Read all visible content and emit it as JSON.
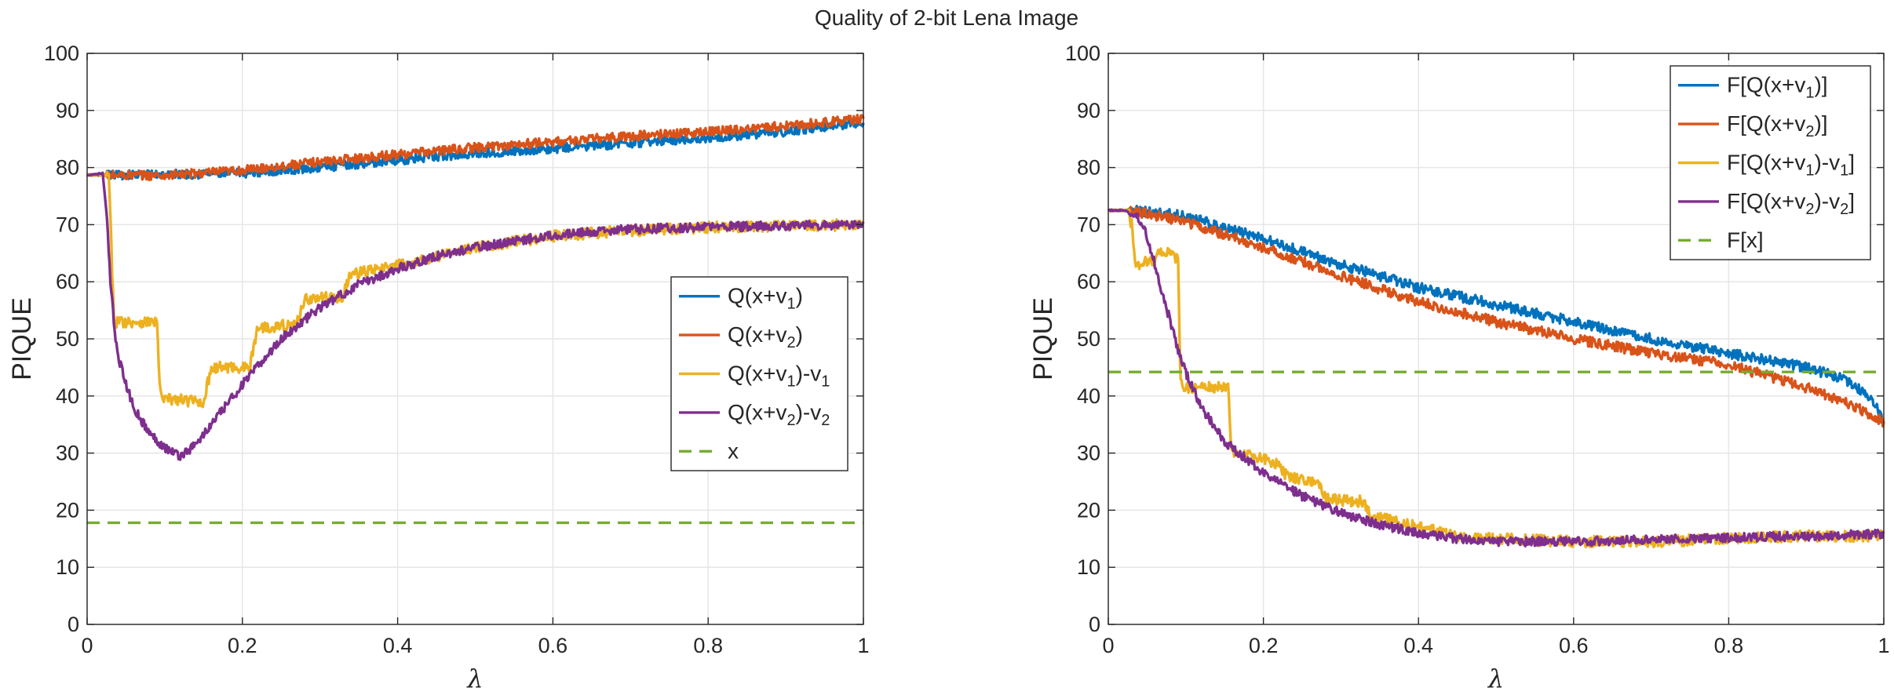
{
  "figure_title": "Quality of 2-bit Lena Image",
  "colors": {
    "blue": "#0072BD",
    "orange": "#D95319",
    "yellow": "#EDB120",
    "purple": "#7E2F8E",
    "green": "#77AC30",
    "grid": "#e6e6e6",
    "axis": "#262626"
  },
  "chart_data": [
    {
      "type": "line",
      "title": "Quality of 2-bit Lena Image",
      "xlabel": "λ",
      "ylabel": "PIQUE",
      "xlim": [
        0,
        1
      ],
      "ylim": [
        0,
        100
      ],
      "xticks": [
        "0",
        "0.2",
        "0.4",
        "0.6",
        "0.8",
        "1"
      ],
      "yticks": [
        "0",
        "10",
        "20",
        "30",
        "40",
        "50",
        "60",
        "70",
        "80",
        "90",
        "100"
      ],
      "grid": true,
      "legend_position": "center-right",
      "series": [
        {
          "name": "Q(x+v1)",
          "legend_parts": [
            [
              "Q(x+v",
              ""
            ],
            [
              "1",
              "sub"
            ],
            [
              ")",
              ""
            ]
          ],
          "color": "#0072BD",
          "style": "solid",
          "x": [
            0,
            0.02,
            0.1,
            0.2,
            0.3,
            0.4,
            0.5,
            0.6,
            0.7,
            0.8,
            0.9,
            1.0
          ],
          "y": [
            78.7,
            78.7,
            78.8,
            79.0,
            80.0,
            81.3,
            82.5,
            83.3,
            84.3,
            85.2,
            86.3,
            88.0
          ],
          "noise": 0.8
        },
        {
          "name": "Q(x+v2)",
          "legend_parts": [
            [
              "Q(x+v",
              ""
            ],
            [
              "2",
              "sub"
            ],
            [
              ")",
              ""
            ]
          ],
          "color": "#D95319",
          "style": "solid",
          "x": [
            0,
            0.02,
            0.1,
            0.2,
            0.3,
            0.4,
            0.5,
            0.6,
            0.7,
            0.8,
            0.9,
            1.0
          ],
          "y": [
            78.7,
            78.7,
            78.6,
            79.5,
            81.0,
            82.3,
            83.5,
            84.5,
            85.5,
            86.3,
            87.3,
            88.5
          ],
          "noise": 0.8
        },
        {
          "name": "Q(x+v1)-v1",
          "legend_parts": [
            [
              "Q(x+v",
              ""
            ],
            [
              "1",
              "sub"
            ],
            [
              ")-v",
              ""
            ],
            [
              "1",
              "sub"
            ]
          ],
          "color": "#EDB120",
          "style": "solid",
          "x": [
            0,
            0.02,
            0.028,
            0.034,
            0.036,
            0.09,
            0.092,
            0.095,
            0.15,
            0.155,
            0.16,
            0.21,
            0.215,
            0.22,
            0.27,
            0.275,
            0.28,
            0.33,
            0.335,
            0.34,
            0.39,
            0.45,
            0.5,
            0.6,
            0.7,
            0.8,
            0.9,
            1.0
          ],
          "y": [
            78.7,
            78.7,
            78.5,
            55,
            53,
            53,
            46,
            39.5,
            39,
            42,
            45,
            45,
            49,
            52,
            52.5,
            55,
            57,
            57.3,
            60,
            61.3,
            62.5,
            64.5,
            66,
            68,
            69,
            69.5,
            69.8,
            70
          ],
          "noise": 1.0
        },
        {
          "name": "Q(x+v2)-v2",
          "legend_parts": [
            [
              "Q(x+v",
              ""
            ],
            [
              "2",
              "sub"
            ],
            [
              ")-v",
              ""
            ],
            [
              "2",
              "sub"
            ]
          ],
          "color": "#7E2F8E",
          "style": "solid",
          "x": [
            0,
            0.02,
            0.025,
            0.03,
            0.035,
            0.04,
            0.05,
            0.06,
            0.08,
            0.1,
            0.12,
            0.14,
            0.16,
            0.2,
            0.25,
            0.3,
            0.35,
            0.4,
            0.45,
            0.5,
            0.6,
            0.7,
            0.8,
            0.9,
            1.0
          ],
          "y": [
            78.7,
            79,
            72,
            60,
            52,
            47,
            42,
            38,
            33.5,
            31,
            29.5,
            31.5,
            35,
            42,
            50,
            55.5,
            59.5,
            62.3,
            64.5,
            66,
            68.2,
            69.2,
            69.6,
            69.8,
            70
          ],
          "noise": 0.8
        },
        {
          "name": "x",
          "legend_parts": [
            [
              "x",
              ""
            ]
          ],
          "color": "#77AC30",
          "style": "dashed",
          "x": [
            0,
            1
          ],
          "y": [
            17.8,
            17.8
          ],
          "noise": 0
        }
      ]
    },
    {
      "type": "line",
      "title": "",
      "xlabel": "λ",
      "ylabel": "PIQUE",
      "xlim": [
        0,
        1
      ],
      "ylim": [
        0,
        100
      ],
      "xticks": [
        "0",
        "0.2",
        "0.4",
        "0.6",
        "0.8",
        "1"
      ],
      "yticks": [
        "0",
        "10",
        "20",
        "30",
        "40",
        "50",
        "60",
        "70",
        "80",
        "90",
        "100"
      ],
      "grid": true,
      "legend_position": "top-right",
      "series": [
        {
          "name": "F[Q(x+v1)]",
          "legend_parts": [
            [
              "F[Q(x+v",
              ""
            ],
            [
              "1",
              "sub"
            ],
            [
              ")]",
              ""
            ]
          ],
          "color": "#0072BD",
          "style": "solid",
          "x": [
            0,
            0.02,
            0.05,
            0.1,
            0.2,
            0.3,
            0.4,
            0.5,
            0.6,
            0.7,
            0.8,
            0.9,
            0.95,
            0.98,
            1.0
          ],
          "y": [
            72.5,
            72.5,
            72.3,
            71.5,
            67.5,
            63,
            59,
            56,
            53,
            50,
            47.5,
            45,
            43,
            40,
            36
          ],
          "noise": 0.9
        },
        {
          "name": "F[Q(x+v2)]",
          "legend_parts": [
            [
              "F[Q(x+v",
              ""
            ],
            [
              "2",
              "sub"
            ],
            [
              ")]",
              ""
            ]
          ],
          "color": "#D95319",
          "style": "solid",
          "x": [
            0,
            0.02,
            0.05,
            0.1,
            0.2,
            0.3,
            0.4,
            0.5,
            0.6,
            0.7,
            0.8,
            0.9,
            0.95,
            1.0
          ],
          "y": [
            72.5,
            72.5,
            72.0,
            70.5,
            66,
            61,
            56.5,
            53,
            50,
            47.5,
            45.5,
            41.5,
            39,
            35.5
          ],
          "noise": 0.9
        },
        {
          "name": "F[Q(x+v1)-v1]",
          "legend_parts": [
            [
              "F[Q(x+v",
              ""
            ],
            [
              "1",
              "sub"
            ],
            [
              ")-v",
              ""
            ],
            [
              "1",
              "sub"
            ],
            [
              "]",
              ""
            ]
          ],
          "color": "#EDB120",
          "style": "solid",
          "x": [
            0,
            0.025,
            0.03,
            0.035,
            0.06,
            0.07,
            0.09,
            0.093,
            0.1,
            0.155,
            0.158,
            0.16,
            0.2,
            0.22,
            0.23,
            0.27,
            0.28,
            0.33,
            0.34,
            0.4,
            0.45,
            0.5,
            0.6,
            0.7,
            0.8,
            0.9,
            1.0
          ],
          "y": [
            72.5,
            72.5,
            70,
            63,
            64,
            65.5,
            64,
            42,
            41.5,
            41.5,
            31,
            30,
            29,
            28,
            26,
            25,
            22,
            21.5,
            19,
            17,
            15.5,
            15,
            14.5,
            14.5,
            15,
            15.5,
            15.5
          ],
          "noise": 1.0
        },
        {
          "name": "F[Q(x+v2)-v2]",
          "legend_parts": [
            [
              "F[Q(x+v",
              ""
            ],
            [
              "2",
              "sub"
            ],
            [
              ")-v",
              ""
            ],
            [
              "2",
              "sub"
            ],
            [
              "]",
              ""
            ]
          ],
          "color": "#7E2F8E",
          "style": "solid",
          "x": [
            0,
            0.02,
            0.03,
            0.04,
            0.05,
            0.06,
            0.07,
            0.08,
            0.09,
            0.1,
            0.12,
            0.15,
            0.2,
            0.25,
            0.3,
            0.35,
            0.4,
            0.45,
            0.5,
            0.6,
            0.7,
            0.8,
            0.9,
            1.0
          ],
          "y": [
            72.5,
            72.5,
            72,
            71,
            68,
            63,
            58,
            53,
            48,
            44,
            38,
            32,
            26.5,
            22.5,
            19.5,
            17.5,
            16,
            15,
            14.5,
            14.5,
            14.8,
            15.2,
            15.5,
            15.8
          ],
          "noise": 0.8
        },
        {
          "name": "F[x]",
          "legend_parts": [
            [
              "F[x]",
              ""
            ]
          ],
          "color": "#77AC30",
          "style": "dashed",
          "x": [
            0,
            1
          ],
          "y": [
            44.2,
            44.2
          ],
          "noise": 0
        }
      ]
    }
  ]
}
